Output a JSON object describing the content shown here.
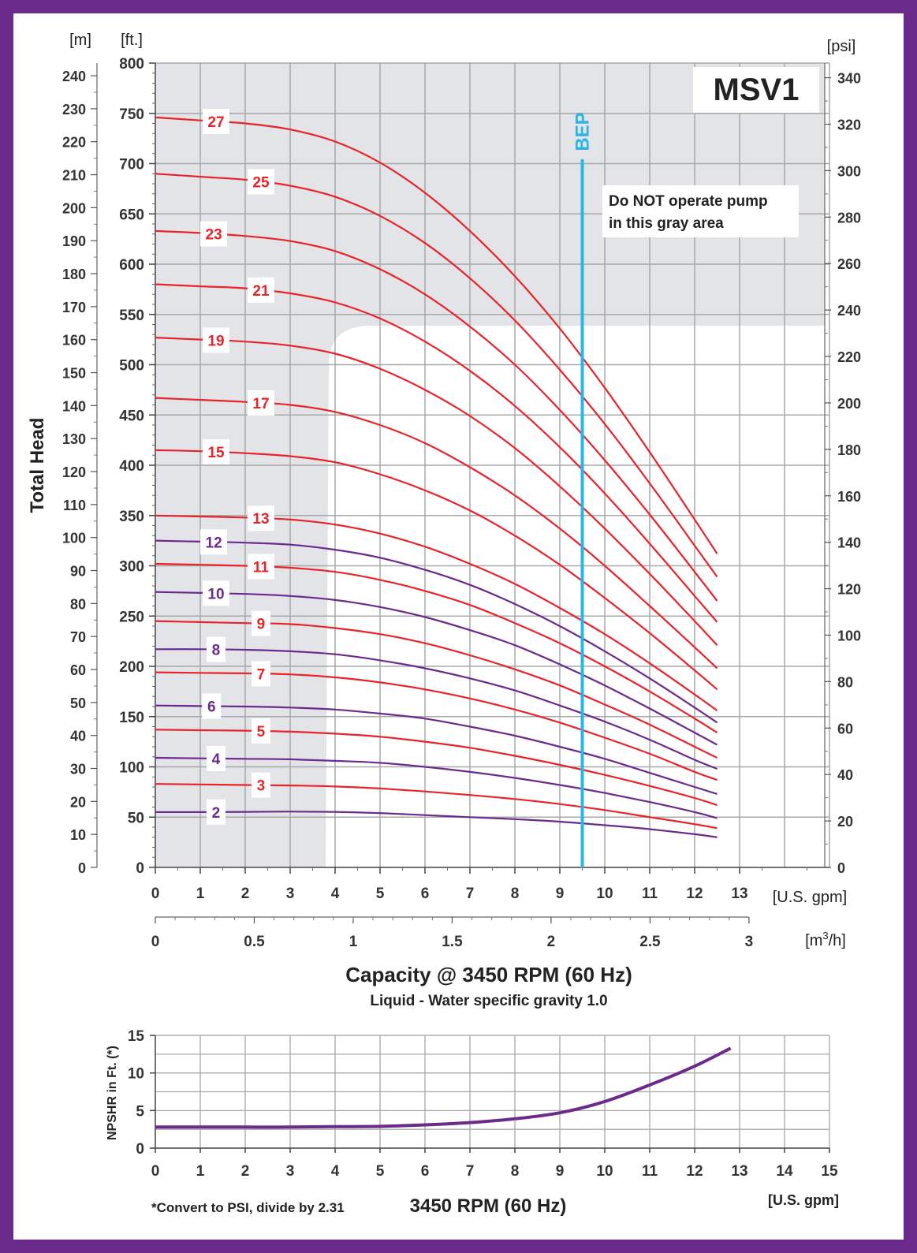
{
  "title_box": "MSV1",
  "warning_line1": "Do NOT operate pump",
  "warning_line2": "in this gray area",
  "bep_label": "BEP",
  "bep_gpm": 9.5,
  "colors": {
    "frame": "#6a2a8c",
    "odd_stage": "#e8232a",
    "even_stage": "#6b2a8c",
    "bep": "#29b6e6",
    "gray_area": "#e2e4e8",
    "grid": "#a8a8a8"
  },
  "chart_data": [
    {
      "type": "line",
      "title": "MSV1",
      "xlabel": "Capacity @ 3450 RPM (60 Hz)",
      "subtitle": "Liquid - Water specific gravity 1.0",
      "ylabel": "Total Head",
      "x_unit": "[U.S. gpm]",
      "x2_unit_base": "[m",
      "x2_unit_sup": "3",
      "x2_unit_end": "/h]",
      "y_unit_left_m": "[m]",
      "y_unit_left_ft": "[ft.]",
      "y_unit_right": "[psi]",
      "xlim": [
        0,
        15
      ],
      "ylim_ft": [
        0,
        800
      ],
      "x_ticks": [
        "0",
        "1",
        "2",
        "3",
        "4",
        "5",
        "6",
        "7",
        "8",
        "9",
        "10",
        "11",
        "12",
        "13"
      ],
      "x2_ticks": [
        "0",
        "0.5",
        "1",
        "1.5",
        "2",
        "2.5",
        "3"
      ],
      "y_ft_ticks": [
        "0",
        "50",
        "100",
        "150",
        "200",
        "250",
        "300",
        "350",
        "400",
        "450",
        "500",
        "550",
        "600",
        "650",
        "700",
        "750",
        "800"
      ],
      "y_m_ticks": [
        "0",
        "10",
        "20",
        "30",
        "40",
        "50",
        "60",
        "70",
        "80",
        "90",
        "100",
        "110",
        "120",
        "130",
        "140",
        "150",
        "160",
        "170",
        "180",
        "190",
        "200",
        "210",
        "220",
        "230",
        "240"
      ],
      "y_psi_ticks": [
        "0",
        "20",
        "40",
        "60",
        "80",
        "100",
        "120",
        "140",
        "160",
        "180",
        "200",
        "220",
        "240",
        "260",
        "280",
        "300",
        "320",
        "340"
      ],
      "x_gpm": [
        0,
        1,
        2,
        3,
        4,
        5,
        6,
        7,
        8,
        9,
        10,
        11,
        12,
        12.5
      ],
      "series": [
        {
          "name": "2",
          "label_x": 1.35,
          "values": [
            55,
            55,
            55.2,
            55.5,
            55.2,
            54,
            52,
            50,
            48,
            45.5,
            42,
            38,
            33,
            30
          ]
        },
        {
          "name": "3",
          "label_x": 2.35,
          "values": [
            83,
            82.5,
            82,
            81.5,
            80.5,
            78.5,
            75.5,
            72,
            68,
            63,
            57,
            50,
            43,
            39
          ]
        },
        {
          "name": "4",
          "label_x": 1.35,
          "values": [
            109,
            108.5,
            108,
            107.5,
            106,
            104,
            100,
            95,
            89,
            82,
            74,
            65,
            55,
            49
          ]
        },
        {
          "name": "5",
          "label_x": 2.35,
          "values": [
            137,
            136.5,
            136,
            135,
            133,
            130,
            125,
            119,
            111,
            102,
            92,
            81,
            69,
            62
          ]
        },
        {
          "name": "6",
          "label_x": 1.25,
          "values": [
            161,
            160.5,
            160,
            159,
            157,
            153,
            148,
            140,
            131,
            120,
            108,
            94,
            80,
            73
          ]
        },
        {
          "name": "7",
          "label_x": 2.35,
          "values": [
            194,
            193.5,
            193,
            192,
            189,
            184,
            177,
            168,
            157,
            144,
            129,
            113,
            95,
            87
          ]
        },
        {
          "name": "8",
          "label_x": 1.35,
          "values": [
            217,
            217,
            216.5,
            215,
            212,
            206,
            198,
            188,
            176,
            161,
            145,
            127,
            107,
            98
          ]
        },
        {
          "name": "9",
          "label_x": 2.35,
          "values": [
            245,
            244,
            243,
            242,
            238,
            232,
            223,
            211,
            197,
            181,
            162,
            142,
            120,
            109
          ]
        },
        {
          "name": "10",
          "label_x": 1.35,
          "values": [
            274,
            273,
            272,
            270,
            266,
            259,
            249,
            236,
            221,
            202,
            181,
            158,
            134,
            122
          ]
        },
        {
          "name": "11",
          "label_x": 2.35,
          "values": [
            302,
            301,
            300,
            298,
            294,
            286,
            275,
            261,
            243,
            223,
            200,
            175,
            148,
            134
          ]
        },
        {
          "name": "12",
          "label_x": 1.3,
          "values": [
            325,
            324,
            323,
            321,
            316,
            308,
            296,
            281,
            262,
            240,
            215,
            188,
            159,
            144
          ]
        },
        {
          "name": "13",
          "label_x": 2.35,
          "values": [
            350,
            349,
            348,
            346,
            341,
            332,
            319,
            302,
            282,
            258,
            232,
            203,
            172,
            156
          ]
        },
        {
          "name": "15",
          "label_x": 1.35,
          "values": [
            415,
            414,
            412,
            409,
            403,
            391,
            375,
            355,
            330,
            301,
            268,
            233,
            196,
            177
          ]
        },
        {
          "name": "17",
          "label_x": 2.35,
          "values": [
            467,
            465,
            463,
            460,
            453,
            440,
            422,
            398,
            370,
            337,
            300,
            260,
            219,
            198
          ]
        },
        {
          "name": "19",
          "label_x": 1.35,
          "values": [
            527,
            525,
            523,
            519,
            511,
            496,
            475,
            449,
            417,
            379,
            337,
            292,
            245,
            221
          ]
        },
        {
          "name": "21",
          "label_x": 2.35,
          "values": [
            580,
            578,
            576,
            571,
            562,
            546,
            523,
            494,
            459,
            418,
            372,
            322,
            270,
            244
          ]
        },
        {
          "name": "23",
          "label_x": 1.3,
          "values": [
            633,
            631,
            628,
            623,
            613,
            595,
            570,
            538,
            500,
            455,
            405,
            351,
            294,
            265
          ]
        },
        {
          "name": "25",
          "label_x": 2.35,
          "values": [
            690,
            687,
            684,
            678,
            667,
            648,
            621,
            586,
            544,
            495,
            441,
            382,
            320,
            289
          ]
        },
        {
          "name": "27",
          "label_x": 1.35,
          "values": [
            746,
            743,
            740,
            734,
            722,
            701,
            671,
            633,
            588,
            536,
            477,
            413,
            346,
            312
          ]
        }
      ]
    },
    {
      "type": "line",
      "ylabel": "NPSHR in Ft. (*)",
      "xlabel": "3450 RPM (60 Hz)",
      "x_unit": "[U.S. gpm]",
      "footnote": "*Convert to PSI, divide by 2.31",
      "xlim": [
        0,
        15
      ],
      "ylim": [
        0,
        15
      ],
      "x_ticks": [
        "0",
        "1",
        "2",
        "3",
        "4",
        "5",
        "6",
        "7",
        "8",
        "9",
        "10",
        "11",
        "12",
        "13",
        "14",
        "15"
      ],
      "y_ticks": [
        "0",
        "5",
        "10",
        "15"
      ],
      "x": [
        0,
        1,
        2,
        3,
        4,
        5,
        6,
        7,
        8,
        9,
        10,
        11,
        12,
        12.8
      ],
      "values": [
        2.8,
        2.8,
        2.8,
        2.8,
        2.85,
        2.9,
        3.1,
        3.4,
        3.9,
        4.7,
        6.2,
        8.4,
        10.9,
        13.3
      ]
    }
  ]
}
